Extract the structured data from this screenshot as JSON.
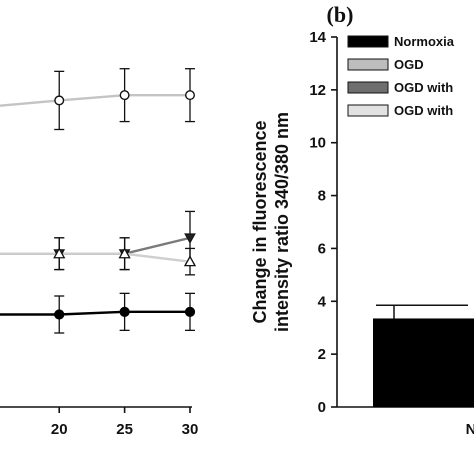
{
  "chart_data": [
    {
      "type": "line",
      "title": "",
      "xlabel": "",
      "ylabel": "",
      "x_ticks": [
        "20",
        "25",
        "30"
      ],
      "xlim": [
        17,
        30
      ],
      "ylim": [
        0,
        14
      ],
      "x": [
        20,
        25,
        30
      ],
      "series": [
        {
          "values": [
            11.6,
            11.8,
            11.8
          ],
          "err": [
            1.1,
            1.0,
            1.0
          ],
          "color": "#b8b8b8",
          "line": "#c4c4c4",
          "marker": "circle-open"
        },
        {
          "values": [
            5.8,
            5.8,
            6.4
          ],
          "err": [
            0.6,
            0.6,
            1.0
          ],
          "color": "#7a7a7a",
          "line": "#7a7a7a",
          "marker": "triangle-down-filled"
        },
        {
          "values": [
            5.8,
            5.8,
            5.5
          ],
          "err": [
            0.6,
            0.6,
            0.5
          ],
          "color": "#b8b8b8",
          "line": "#cfcfcf",
          "marker": "triangle-up-open"
        },
        {
          "values": [
            3.5,
            3.6,
            3.6
          ],
          "err": [
            0.7,
            0.7,
            0.7
          ],
          "color": "#000000",
          "line": "#000000",
          "marker": "circle-filled"
        }
      ],
      "left_series_start": [
        11.4,
        5.8,
        5.8,
        3.5
      ],
      "grid": false
    },
    {
      "type": "bar",
      "panel_label": "(b)",
      "ylabel_lines": [
        "Change in fluorescence",
        "intensity ratio 340/380 nm"
      ],
      "y_ticks": [
        "0",
        "2",
        "4",
        "6",
        "8",
        "10",
        "12",
        "14"
      ],
      "ylim": [
        0,
        14
      ],
      "x_tick_partial": "N",
      "bars": [
        {
          "value": 3.35,
          "err": 0.5,
          "color": "#000000"
        }
      ],
      "legend": [
        {
          "label": "Normoxia",
          "color": "#000000"
        },
        {
          "label": "OGD",
          "color": "#bdbdbd"
        },
        {
          "label": "OGD with",
          "color": "#6e6e6e"
        },
        {
          "label": "OGD with",
          "color": "#e2e2e2"
        }
      ],
      "legend_position": "top-right",
      "grid": false
    }
  ]
}
